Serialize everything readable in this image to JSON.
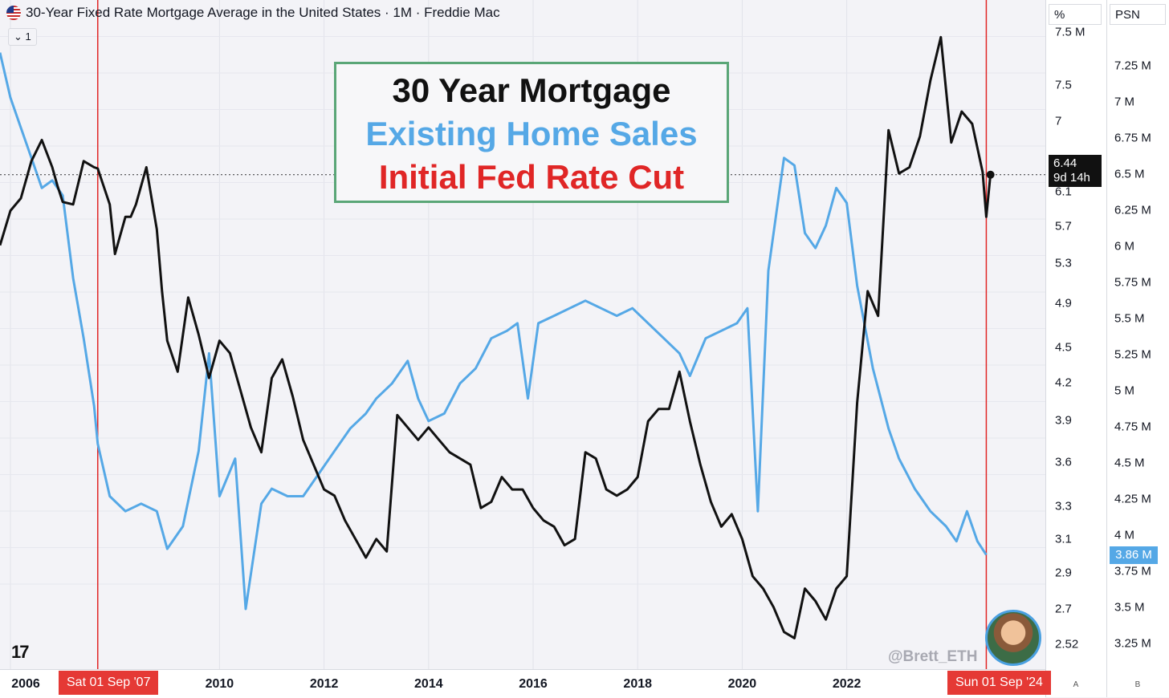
{
  "header": {
    "title": "30-Year Fixed Rate Mortgage Average in the United States · 1M · Freddie Mac",
    "collapse_label": "1"
  },
  "legend": {
    "line1": "30 Year Mortgage",
    "line2": "Existing Home Sales",
    "line3": "Initial Fed Rate Cut"
  },
  "axes": {
    "left_unit": "%",
    "right_unit": "PSN",
    "left_ticks": [
      "7.5 M",
      "7.5",
      "7",
      "6.1",
      "5.7",
      "5.3",
      "4.9",
      "4.5",
      "4.2",
      "3.9",
      "3.6",
      "3.3",
      "3.1",
      "2.9",
      "2.7",
      "2.52"
    ],
    "right_ticks": [
      "7.25 M",
      "7 M",
      "6.75 M",
      "6.5 M",
      "6.25 M",
      "6 M",
      "5.75 M",
      "5.5 M",
      "5.25 M",
      "5 M",
      "4.75 M",
      "4.5 M",
      "4.25 M",
      "4 M",
      "3.75 M",
      "3.5 M",
      "3.25 M"
    ],
    "x_ticks": [
      "2006",
      "2010",
      "2012",
      "2014",
      "2016",
      "2018",
      "2020",
      "2022"
    ],
    "bottom_a": "A",
    "bottom_b": "B"
  },
  "markers": {
    "cut1_label": "Sat 01 Sep '07",
    "cut2_label": "Sun 01 Sep '24"
  },
  "tags": {
    "price_value": "6.44",
    "price_countdown": "9d 14h",
    "sales_value": "3.86 M"
  },
  "watermark": "@Brett_ETH",
  "colors": {
    "mortgage": "#111111",
    "home_sales": "#55a8e6",
    "fed_cut": "#e02626",
    "legend_border": "#5aa677"
  },
  "chart_data": {
    "type": "line",
    "title": "30-Year Fixed Rate Mortgage Average in the United States · 1M · Freddie Mac",
    "x_range": [
      2005.8,
      2025.8
    ],
    "vertical_markers": [
      2007.67,
      2024.67
    ],
    "series": [
      {
        "name": "30 Year Mortgage",
        "axis": "left",
        "unit": "%",
        "ylim": [
          2.45,
          7.85
        ],
        "points": [
          [
            2005.8,
            5.87
          ],
          [
            2006.0,
            6.15
          ],
          [
            2006.2,
            6.25
          ],
          [
            2006.4,
            6.55
          ],
          [
            2006.6,
            6.72
          ],
          [
            2006.8,
            6.5
          ],
          [
            2006.9,
            6.35
          ],
          [
            2007.0,
            6.22
          ],
          [
            2007.2,
            6.2
          ],
          [
            2007.4,
            6.55
          ],
          [
            2007.6,
            6.5
          ],
          [
            2007.67,
            6.49
          ],
          [
            2007.9,
            6.2
          ],
          [
            2008.0,
            5.8
          ],
          [
            2008.2,
            6.1
          ],
          [
            2008.3,
            6.1
          ],
          [
            2008.4,
            6.2
          ],
          [
            2008.6,
            6.5
          ],
          [
            2008.8,
            6.0
          ],
          [
            2008.9,
            5.5
          ],
          [
            2009.0,
            5.1
          ],
          [
            2009.2,
            4.85
          ],
          [
            2009.4,
            5.45
          ],
          [
            2009.6,
            5.15
          ],
          [
            2009.8,
            4.8
          ],
          [
            2010.0,
            5.1
          ],
          [
            2010.2,
            5.0
          ],
          [
            2010.4,
            4.7
          ],
          [
            2010.6,
            4.4
          ],
          [
            2010.8,
            4.2
          ],
          [
            2011.0,
            4.8
          ],
          [
            2011.2,
            4.95
          ],
          [
            2011.4,
            4.65
          ],
          [
            2011.6,
            4.3
          ],
          [
            2011.8,
            4.1
          ],
          [
            2012.0,
            3.9
          ],
          [
            2012.2,
            3.85
          ],
          [
            2012.4,
            3.65
          ],
          [
            2012.6,
            3.5
          ],
          [
            2012.8,
            3.35
          ],
          [
            2013.0,
            3.5
          ],
          [
            2013.2,
            3.4
          ],
          [
            2013.4,
            4.5
          ],
          [
            2013.6,
            4.4
          ],
          [
            2013.8,
            4.3
          ],
          [
            2014.0,
            4.4
          ],
          [
            2014.2,
            4.3
          ],
          [
            2014.4,
            4.2
          ],
          [
            2014.6,
            4.15
          ],
          [
            2014.8,
            4.1
          ],
          [
            2015.0,
            3.75
          ],
          [
            2015.2,
            3.8
          ],
          [
            2015.4,
            4.0
          ],
          [
            2015.6,
            3.9
          ],
          [
            2015.8,
            3.9
          ],
          [
            2016.0,
            3.75
          ],
          [
            2016.2,
            3.65
          ],
          [
            2016.4,
            3.6
          ],
          [
            2016.6,
            3.45
          ],
          [
            2016.8,
            3.5
          ],
          [
            2017.0,
            4.2
          ],
          [
            2017.2,
            4.15
          ],
          [
            2017.4,
            3.9
          ],
          [
            2017.6,
            3.85
          ],
          [
            2017.8,
            3.9
          ],
          [
            2018.0,
            4.0
          ],
          [
            2018.2,
            4.45
          ],
          [
            2018.4,
            4.55
          ],
          [
            2018.6,
            4.55
          ],
          [
            2018.8,
            4.85
          ],
          [
            2019.0,
            4.45
          ],
          [
            2019.2,
            4.1
          ],
          [
            2019.4,
            3.8
          ],
          [
            2019.6,
            3.6
          ],
          [
            2019.8,
            3.7
          ],
          [
            2020.0,
            3.5
          ],
          [
            2020.2,
            3.2
          ],
          [
            2020.4,
            3.1
          ],
          [
            2020.6,
            2.95
          ],
          [
            2020.8,
            2.75
          ],
          [
            2021.0,
            2.7
          ],
          [
            2021.2,
            3.1
          ],
          [
            2021.4,
            3.0
          ],
          [
            2021.6,
            2.85
          ],
          [
            2021.8,
            3.1
          ],
          [
            2022.0,
            3.2
          ],
          [
            2022.2,
            4.6
          ],
          [
            2022.4,
            5.5
          ],
          [
            2022.6,
            5.3
          ],
          [
            2022.8,
            6.8
          ],
          [
            2023.0,
            6.45
          ],
          [
            2023.2,
            6.5
          ],
          [
            2023.4,
            6.75
          ],
          [
            2023.6,
            7.2
          ],
          [
            2023.8,
            7.55
          ],
          [
            2024.0,
            6.7
          ],
          [
            2024.2,
            6.95
          ],
          [
            2024.4,
            6.85
          ],
          [
            2024.6,
            6.46
          ],
          [
            2024.67,
            6.1
          ],
          [
            2024.75,
            6.44
          ]
        ]
      },
      {
        "name": "Existing Home Sales",
        "axis": "right",
        "unit": "M",
        "ylim": [
          3.1,
          7.55
        ],
        "points": [
          [
            2005.8,
            7.2
          ],
          [
            2006.0,
            6.9
          ],
          [
            2006.2,
            6.7
          ],
          [
            2006.4,
            6.5
          ],
          [
            2006.6,
            6.3
          ],
          [
            2006.8,
            6.35
          ],
          [
            2007.0,
            6.25
          ],
          [
            2007.2,
            5.7
          ],
          [
            2007.4,
            5.3
          ],
          [
            2007.6,
            4.85
          ],
          [
            2007.67,
            4.6
          ],
          [
            2007.9,
            4.25
          ],
          [
            2008.2,
            4.15
          ],
          [
            2008.5,
            4.2
          ],
          [
            2008.8,
            4.15
          ],
          [
            2009.0,
            3.9
          ],
          [
            2009.3,
            4.05
          ],
          [
            2009.6,
            4.55
          ],
          [
            2009.8,
            5.2
          ],
          [
            2010.0,
            4.25
          ],
          [
            2010.3,
            4.5
          ],
          [
            2010.5,
            3.5
          ],
          [
            2010.8,
            4.2
          ],
          [
            2011.0,
            4.3
          ],
          [
            2011.3,
            4.25
          ],
          [
            2011.6,
            4.25
          ],
          [
            2011.9,
            4.4
          ],
          [
            2012.2,
            4.55
          ],
          [
            2012.5,
            4.7
          ],
          [
            2012.8,
            4.8
          ],
          [
            2013.0,
            4.9
          ],
          [
            2013.3,
            5.0
          ],
          [
            2013.6,
            5.15
          ],
          [
            2013.8,
            4.9
          ],
          [
            2014.0,
            4.75
          ],
          [
            2014.3,
            4.8
          ],
          [
            2014.6,
            5.0
          ],
          [
            2014.9,
            5.1
          ],
          [
            2015.2,
            5.3
          ],
          [
            2015.5,
            5.35
          ],
          [
            2015.7,
            5.4
          ],
          [
            2015.9,
            4.9
          ],
          [
            2016.1,
            5.4
          ],
          [
            2016.4,
            5.45
          ],
          [
            2016.7,
            5.5
          ],
          [
            2017.0,
            5.55
          ],
          [
            2017.3,
            5.5
          ],
          [
            2017.6,
            5.45
          ],
          [
            2017.9,
            5.5
          ],
          [
            2018.2,
            5.4
          ],
          [
            2018.5,
            5.3
          ],
          [
            2018.8,
            5.2
          ],
          [
            2019.0,
            5.05
          ],
          [
            2019.3,
            5.3
          ],
          [
            2019.6,
            5.35
          ],
          [
            2019.9,
            5.4
          ],
          [
            2020.1,
            5.5
          ],
          [
            2020.3,
            4.15
          ],
          [
            2020.5,
            5.75
          ],
          [
            2020.8,
            6.5
          ],
          [
            2021.0,
            6.45
          ],
          [
            2021.2,
            6.0
          ],
          [
            2021.4,
            5.9
          ],
          [
            2021.6,
            6.05
          ],
          [
            2021.8,
            6.3
          ],
          [
            2022.0,
            6.2
          ],
          [
            2022.2,
            5.65
          ],
          [
            2022.5,
            5.1
          ],
          [
            2022.8,
            4.7
          ],
          [
            2023.0,
            4.5
          ],
          [
            2023.3,
            4.3
          ],
          [
            2023.6,
            4.15
          ],
          [
            2023.9,
            4.05
          ],
          [
            2024.1,
            3.95
          ],
          [
            2024.3,
            4.15
          ],
          [
            2024.5,
            3.95
          ],
          [
            2024.67,
            3.86
          ]
        ]
      }
    ]
  }
}
